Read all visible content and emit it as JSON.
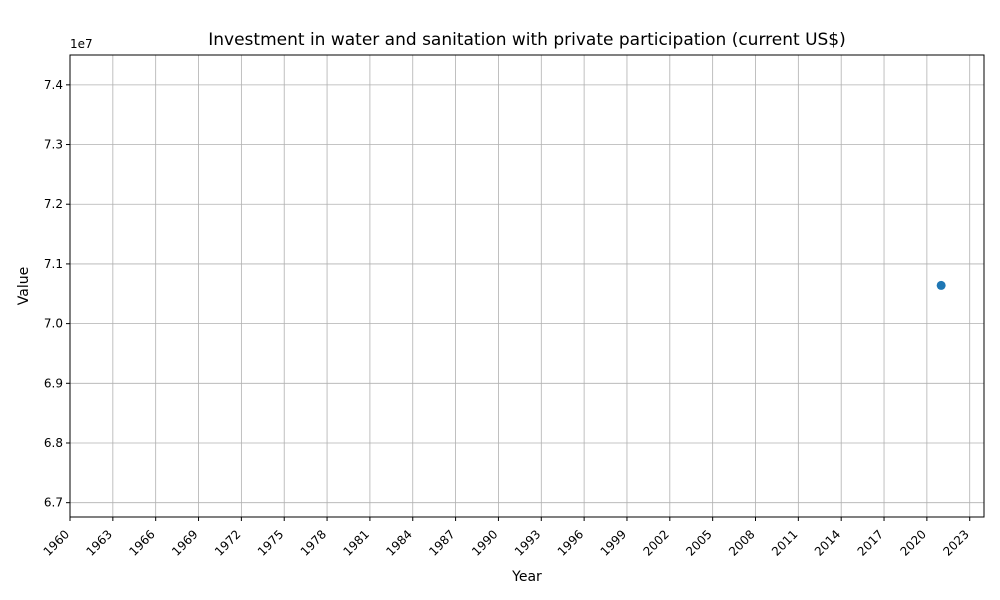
{
  "chart_data": {
    "type": "scatter",
    "title": "Investment in water and sanitation with private participation (current US$)",
    "xlabel": "Year",
    "ylabel": "Value",
    "xlim": [
      1960,
      2024
    ],
    "ylim": [
      66760000,
      74500000
    ],
    "x_ticks": [
      "1960",
      "1963",
      "1966",
      "1969",
      "1972",
      "1975",
      "1978",
      "1981",
      "1984",
      "1987",
      "1990",
      "1993",
      "1996",
      "1999",
      "2002",
      "2005",
      "2008",
      "2011",
      "2014",
      "2017",
      "2020",
      "2023"
    ],
    "y_ticks": [
      {
        "value": 67000000,
        "label": "6.7"
      },
      {
        "value": 68000000,
        "label": "6.8"
      },
      {
        "value": 69000000,
        "label": "6.9"
      },
      {
        "value": 70000000,
        "label": "7.0"
      },
      {
        "value": 71000000,
        "label": "7.1"
      },
      {
        "value": 72000000,
        "label": "7.2"
      },
      {
        "value": 73000000,
        "label": "7.3"
      },
      {
        "value": 74000000,
        "label": "7.4"
      }
    ],
    "y_offset_label": "1e7",
    "grid": true,
    "series": [
      {
        "color": "#1f77b4",
        "points": [
          {
            "x": 2021,
            "y": 70640000
          }
        ]
      }
    ]
  }
}
